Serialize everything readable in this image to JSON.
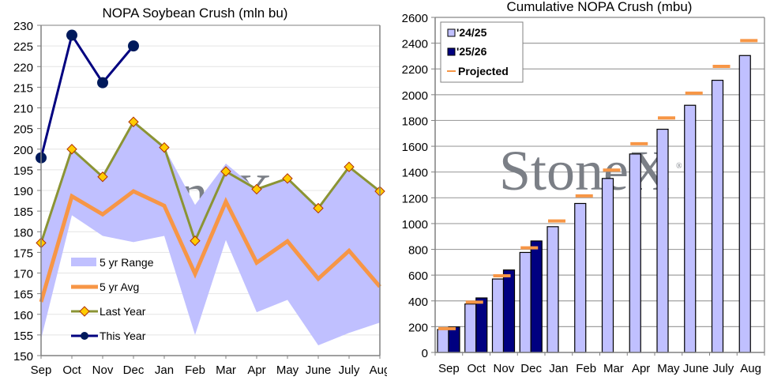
{
  "chart_data": [
    {
      "type": "line",
      "title": "NOPA Soybean Crush (mln bu)",
      "xlabel": "",
      "ylabel": "",
      "ylim": [
        150,
        230
      ],
      "yticks": [
        150,
        155,
        160,
        165,
        170,
        175,
        180,
        185,
        190,
        195,
        200,
        205,
        210,
        215,
        220,
        225,
        230
      ],
      "grid": true,
      "legend_position": "bottom-left",
      "categories": [
        "Sep",
        "Oct",
        "Nov",
        "Dec",
        "Jan",
        "Feb",
        "Mar",
        "Apr",
        "May",
        "June",
        "July",
        "Aug"
      ],
      "watermark": "StoneX",
      "range": {
        "name": "5 yr Range",
        "color": "#c0c0ff",
        "min": [
          154,
          184,
          179,
          177.5,
          179,
          155,
          178,
          160.5,
          163.5,
          152.5,
          155.5,
          158
        ],
        "max": [
          177.5,
          200,
          193.2,
          206.6,
          200.4,
          186.5,
          196.5,
          190.3,
          192.9,
          185.7,
          195.7,
          189.8
        ]
      },
      "series": [
        {
          "name": "5 yr Avg",
          "color": "#f79646",
          "marker": "none",
          "values": [
            163,
            188.6,
            184.2,
            189.8,
            186.3,
            169.8,
            187.3,
            172.5,
            177.7,
            168.6,
            175.4,
            166.7
          ]
        },
        {
          "name": "Last Year",
          "color": "#8b9434",
          "marker": "diamond",
          "marker_fill": "#ffcc00",
          "marker_edge": "#b03000",
          "values": [
            177.3,
            200,
            193.3,
            206.6,
            200.4,
            177.8,
            194.6,
            190.3,
            192.9,
            185.7,
            195.7,
            189.8
          ]
        },
        {
          "name": "This Year",
          "color": "#000080",
          "marker": "circle",
          "marker_fill": "#001a5c",
          "values": [
            197.9,
            227.6,
            216.1,
            225.0,
            null,
            null,
            null,
            null,
            null,
            null,
            null,
            null
          ]
        }
      ]
    },
    {
      "type": "bar",
      "title": "Cumulative NOPA Crush (mbu)",
      "xlabel": "",
      "ylabel": "",
      "ylim": [
        0,
        2600
      ],
      "yticks": [
        0,
        200,
        400,
        600,
        800,
        1000,
        1200,
        1400,
        1600,
        1800,
        2000,
        2200,
        2400,
        2600
      ],
      "grid": true,
      "legend_position": "top-left",
      "categories": [
        "Sep",
        "Oct",
        "Nov",
        "Dec",
        "Jan",
        "Feb",
        "Mar",
        "Apr",
        "May",
        "June",
        "July",
        "Aug"
      ],
      "watermark": "StoneX",
      "series": [
        {
          "name": "'24/25",
          "color": "#c0c0ff",
          "values": [
            178,
            376,
            570,
            776,
            976,
            1156,
            1350,
            1540,
            1732,
            1918,
            2112,
            2304
          ]
        },
        {
          "name": "'25/26",
          "color": "#000080",
          "values": [
            198,
            423,
            640,
            865,
            null,
            null,
            null,
            null,
            null,
            null,
            null,
            null
          ]
        },
        {
          "name": "Projected",
          "color": "#f79646",
          "marker": "dash",
          "values": [
            185,
            390,
            595,
            812,
            1020,
            1215,
            1415,
            1620,
            1820,
            2012,
            2220,
            2420
          ]
        }
      ]
    }
  ]
}
